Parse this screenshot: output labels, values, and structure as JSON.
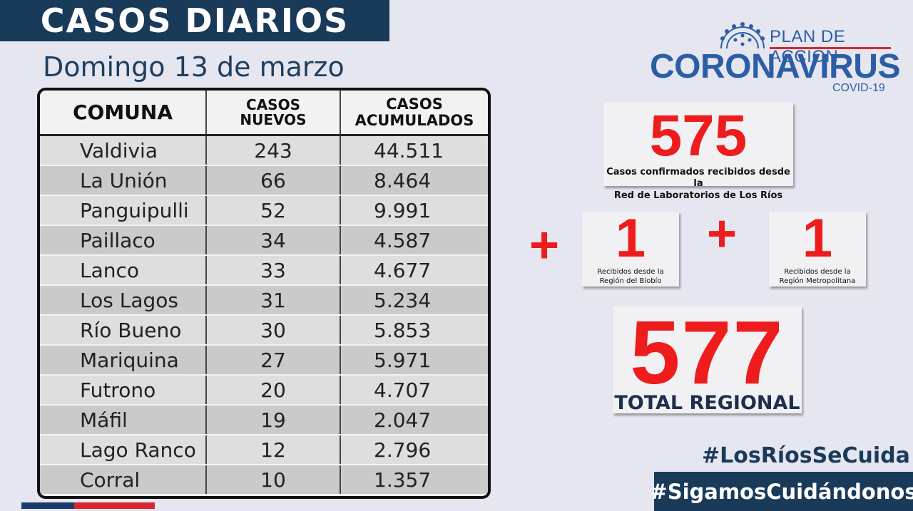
{
  "header": {
    "title": "CASOS DIARIOS",
    "date": "Domingo 13 de marzo"
  },
  "table": {
    "columns": [
      "COMUNA",
      "CASOS NUEVOS",
      "CASOS ACUMULADOS"
    ],
    "rows": [
      {
        "comuna": "Valdivia",
        "nuevos": "243",
        "acumulados": "44.511"
      },
      {
        "comuna": "La Unión",
        "nuevos": "66",
        "acumulados": "8.464"
      },
      {
        "comuna": "Panguipulli",
        "nuevos": "52",
        "acumulados": "9.991"
      },
      {
        "comuna": "Paillaco",
        "nuevos": "34",
        "acumulados": "4.587"
      },
      {
        "comuna": "Lanco",
        "nuevos": "33",
        "acumulados": "4.677"
      },
      {
        "comuna": "Los Lagos",
        "nuevos": "31",
        "acumulados": "5.234"
      },
      {
        "comuna": "Río Bueno",
        "nuevos": "30",
        "acumulados": "5.853"
      },
      {
        "comuna": "Mariquina",
        "nuevos": "27",
        "acumulados": "5.971"
      },
      {
        "comuna": "Futrono",
        "nuevos": "20",
        "acumulados": "4.707"
      },
      {
        "comuna": "Máfil",
        "nuevos": "19",
        "acumulados": "2.047"
      },
      {
        "comuna": "Lago Ranco",
        "nuevos": "12",
        "acumulados": "2.796"
      },
      {
        "comuna": "Corral",
        "nuevos": "10",
        "acumulados": "1.357"
      }
    ]
  },
  "logo": {
    "plan": "PLAN DE ACCIÓN",
    "main": "CORONAVIRUS",
    "sub": "COVID-19"
  },
  "summary": {
    "labs_value": "575",
    "labs_caption_1": "Casos confirmados recibidos desde la",
    "labs_caption_2": "Red de Laboratorios de Los Ríos",
    "plus_symbol": "+",
    "biobio_value": "1",
    "biobio_caption_1": "Recibidos  desde la",
    "biobio_caption_2": "Región del Biobío",
    "metro_value": "1",
    "metro_caption_1": "Recibidos  desde la",
    "metro_caption_2": "Región Metropolitana",
    "total_value": "577",
    "total_caption": "TOTAL REGIONAL"
  },
  "hashtags": {
    "first": "#LosRíosSeCuida",
    "second": "#SigamosCuidándonos"
  },
  "colors": {
    "navy": "#1a3a5a",
    "accent_red": "#ee1c1c",
    "logo_blue": "#2c5ea6",
    "background": "#e6e6f0"
  }
}
